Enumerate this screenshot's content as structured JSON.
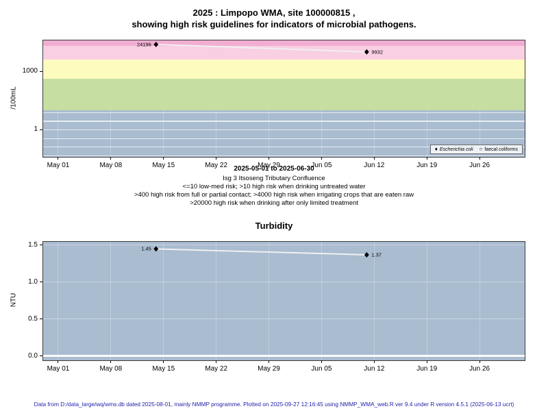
{
  "page": {
    "title_line1": "2025 : Limpopo WMA, site 100000815 ,",
    "title_line2": "showing high risk guidelines for indicators of microbial pathogens.",
    "footer": "Data from D:/data_large/wq/wms.db dated 2025-08-01, mainly NMMP programme. Plotted on 2025-09-27 12:16:45 using NMMP_WMA_web.R ver 9.4 under R version 4.5.1 (2025-06-13 ucrt)"
  },
  "annotations": {
    "date_range": "2025-05-01 to 2025-06-30",
    "site": "Isg 3 Itsoseng Tributary Confluence",
    "guideline1": "<=10 low-med risk; >10 high risk when drinking untreated water",
    "guideline2": ">400 high risk from full or partial contact; >4000 high risk when irrigating crops that are eaten raw",
    "guideline3": ">20000 high risk when drinking after only limited treatment"
  },
  "colors": {
    "panel_bg": "#a9bcd0",
    "line": "#f0f0f0",
    "marker": "#000000",
    "footer_text": "#2222aa"
  },
  "chart_data": [
    {
      "id": "microbial",
      "type": "line",
      "title": "",
      "ylabel": "/100mL",
      "y_scale": "log10",
      "ylim_log10": [
        -1.41,
        4.59
      ],
      "y_ticks": [
        {
          "value": 1000,
          "label": "1000"
        },
        {
          "value": 1,
          "label": "1"
        }
      ],
      "x_domain_days": [
        -2,
        62
      ],
      "x_ticks": [
        {
          "day": 0,
          "label": "May 01"
        },
        {
          "day": 7,
          "label": "May 08"
        },
        {
          "day": 14,
          "label": "May 15"
        },
        {
          "day": 21,
          "label": "May 22"
        },
        {
          "day": 28,
          "label": "May 29"
        },
        {
          "day": 35,
          "label": "Jun 05"
        },
        {
          "day": 42,
          "label": "Jun 12"
        },
        {
          "day": 49,
          "label": "Jun 19"
        },
        {
          "day": 56,
          "label": "Jun 26"
        }
      ],
      "bands": [
        {
          "from": 20000,
          "to": null,
          "color": "#f2aed2",
          "meaning": ">20000 high risk when drinking after only limited treatment"
        },
        {
          "from": 4000,
          "to": 20000,
          "color": "#f9cfe4",
          "meaning": ">4000 high risk when irrigating crops that are eaten raw"
        },
        {
          "from": 400,
          "to": 4000,
          "color": "#fdfbbe",
          "meaning": ">400 high risk from full or partial contact"
        },
        {
          "from": 10,
          "to": 400,
          "color": "#c6dea2",
          "meaning": ">10 high risk when drinking untreated water"
        }
      ],
      "series": [
        {
          "name": "Escherichia coli",
          "marker": "diamond",
          "italic": true,
          "points": [
            {
              "day": 13,
              "value": 24196,
              "label": "24196",
              "label_side": "left"
            },
            {
              "day": 41,
              "value": 9932,
              "label": "9932",
              "label_side": "right"
            }
          ]
        },
        {
          "name": "faecal coliforms",
          "marker": "open-circle",
          "italic": false,
          "points": []
        }
      ],
      "legend_position": "bottom-right"
    },
    {
      "id": "turbidity",
      "type": "line",
      "title": "Turbidity",
      "ylabel": "NTU",
      "y_scale": "linear",
      "ylim": [
        -0.056,
        1.546
      ],
      "y_ticks": [
        {
          "value": 1.5,
          "label": "1.5"
        },
        {
          "value": 1.0,
          "label": "1.0"
        },
        {
          "value": 0.5,
          "label": "0.5"
        },
        {
          "value": 0.0,
          "label": "0.0"
        }
      ],
      "y_gridlines": [
        {
          "value": 1.5,
          "strong": false
        },
        {
          "value": 1.0,
          "strong": false
        },
        {
          "value": 0.5,
          "strong": false
        },
        {
          "value": 0.0,
          "strong": true
        }
      ],
      "x_domain_days": [
        -2,
        62
      ],
      "x_ticks": [
        {
          "day": 0,
          "label": "May 01"
        },
        {
          "day": 7,
          "label": "May 08"
        },
        {
          "day": 14,
          "label": "May 15"
        },
        {
          "day": 21,
          "label": "May 22"
        },
        {
          "day": 28,
          "label": "May 29"
        },
        {
          "day": 35,
          "label": "Jun 05"
        },
        {
          "day": 42,
          "label": "Jun 12"
        },
        {
          "day": 49,
          "label": "Jun 19"
        },
        {
          "day": 56,
          "label": "Jun 26"
        }
      ],
      "series": [
        {
          "name": "Turbidity",
          "marker": "diamond",
          "italic": false,
          "points": [
            {
              "day": 13,
              "value": 1.45,
              "label": "1.45",
              "label_side": "left"
            },
            {
              "day": 41,
              "value": 1.37,
              "label": "1.37",
              "label_side": "right"
            }
          ]
        }
      ],
      "legend_position": null
    }
  ]
}
